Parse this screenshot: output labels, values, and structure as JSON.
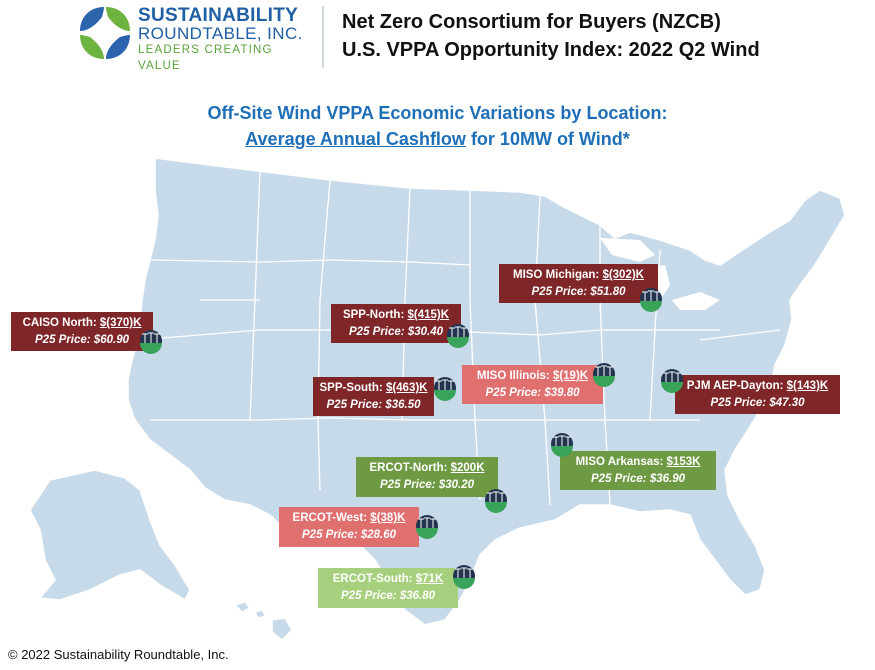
{
  "logo": {
    "line1": "SUSTAINABILITY",
    "line2": "ROUNDTABLE, INC.",
    "tagline": "LEADERS CREATING VALUE"
  },
  "header": {
    "title_line1": "Net Zero Consortium for Buyers (NZCB)",
    "title_line2": "U.S. VPPA Opportunity Index: 2022 Q2 Wind"
  },
  "subtitle": {
    "line1": "Off-Site Wind VPPA Economic Variations by Location:",
    "underlined": "Average Annual Cashflow",
    "rest": " for 10MW of Wind*"
  },
  "locations": [
    {
      "name": "CAISO North: ",
      "cashflow": "$(370)K",
      "p25": "P25 Price: $60.90",
      "color": "#7f2628"
    },
    {
      "name": "SPP-North: ",
      "cashflow": "$(415)K",
      "p25": "P25 Price: $30.40",
      "color": "#7f2628"
    },
    {
      "name": "MISO Michigan: ",
      "cashflow": "$(302)K",
      "p25": "P25 Price: $51.80",
      "color": "#7f2628"
    },
    {
      "name": "SPP-South: ",
      "cashflow": "$(463)K",
      "p25": "P25 Price: $36.50",
      "color": "#7f2628"
    },
    {
      "name": "MISO Illinois: ",
      "cashflow": "$(19)K",
      "p25": "P25 Price: $39.80",
      "color": "#e06f6f"
    },
    {
      "name": "PJM AEP-Dayton: ",
      "cashflow": "$(143)K",
      "p25": "P25 Price: $47.30",
      "color": "#7f2628"
    },
    {
      "name": "MISO Arkansas: ",
      "cashflow": "$153K",
      "p25": "P25 Price: $36.90",
      "color": "#6e9a44"
    },
    {
      "name": "ERCOT-North: ",
      "cashflow": "$200K",
      "p25": "P25 Price: $30.20",
      "color": "#6e9a44"
    },
    {
      "name": "ERCOT-West: ",
      "cashflow": "$(38)K",
      "p25": "P25 Price: $28.60",
      "color": "#e06f6f"
    },
    {
      "name": "ERCOT-South: ",
      "cashflow": "$71K",
      "p25": "P25 Price: $36.80",
      "color": "#a6d07e"
    }
  ],
  "footer": "© 2022 Sustainability Roundtable, Inc.",
  "map_color": "#c7daea",
  "icons": [
    "globe-logo-icon",
    "wind-turbine-icon"
  ]
}
